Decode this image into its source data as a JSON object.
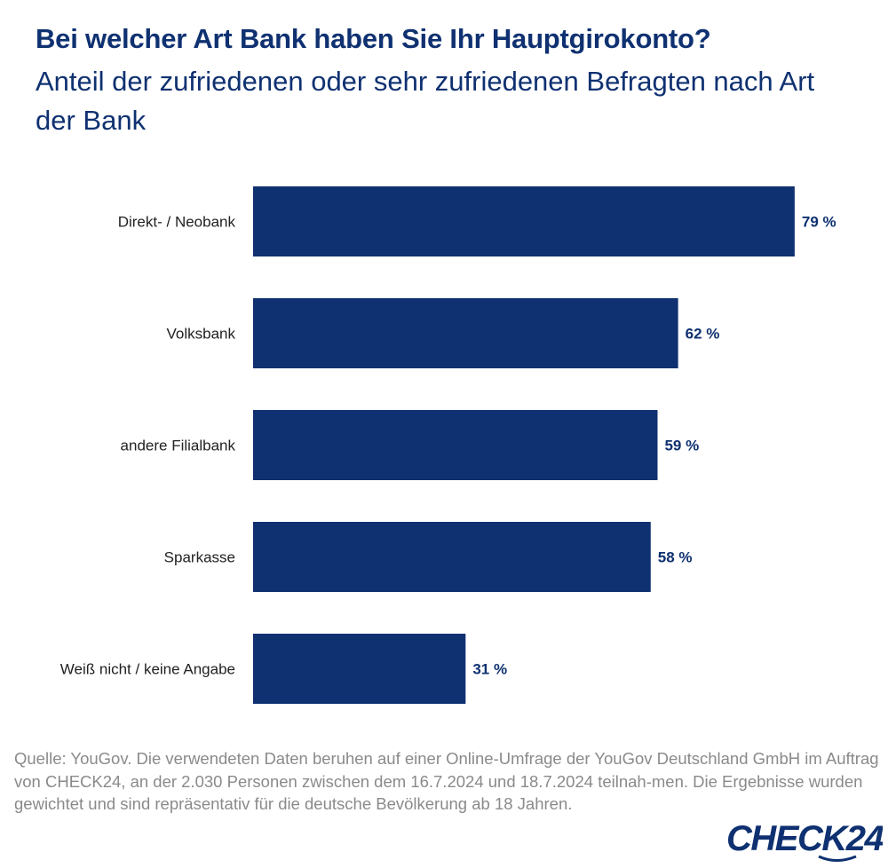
{
  "header": {
    "title": "Bei welcher Art Bank haben Sie Ihr Hauptgirokonto?",
    "subtitle": "Anteil der zufriedenen oder sehr zufriedenen Befragten nach Art der Bank"
  },
  "chart_data": {
    "type": "bar",
    "orientation": "horizontal",
    "categories": [
      "Direkt- / Neobank",
      "Volksbank",
      "andere Filialbank",
      "Sparkasse",
      "Weiß nicht / keine Angabe"
    ],
    "values": [
      79,
      62,
      59,
      58,
      31
    ],
    "value_labels": [
      "79 %",
      "62 %",
      "59 %",
      "58 %",
      "31 %"
    ],
    "unit": "%",
    "xlim": [
      0,
      100
    ],
    "bar_color": "#0f3171",
    "grid": false,
    "legend": "none"
  },
  "footer": {
    "source": "Quelle: YouGov. Die verwendeten Daten beruhen auf einer Online-Umfrage der YouGov Deutschland GmbH im Auftrag von CHECK24, an der 2.030 Personen zwischen dem 16.7.2024 und 18.7.2024 teilnah-men. Die Ergebnisse wurden gewichtet und sind repräsentativ für die deutsche Bevölkerung ab 18 Jahren.",
    "logo_text": "CHECK24"
  },
  "colors": {
    "brand": "#0f3171",
    "source_text": "#8a8a8a"
  }
}
